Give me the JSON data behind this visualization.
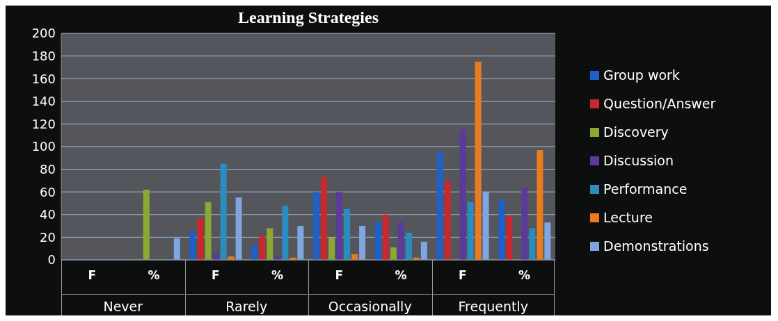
{
  "chart_data": {
    "type": "bar",
    "title": "Learning Strategies",
    "categories": [
      "F",
      "%",
      "F",
      "%",
      "F",
      "%",
      "F",
      "%"
    ],
    "annotations": [
      "Never",
      "Rarely",
      "Occasionally",
      "Frequently"
    ],
    "series": [
      {
        "name": "Group work",
        "color": "#1f5fc8",
        "values": [
          0,
          0,
          25,
          13,
          60,
          33,
          95,
          53
        ]
      },
      {
        "name": "Question/Answer",
        "color": "#c8282e",
        "values": [
          0,
          0,
          37,
          21,
          73,
          40,
          70,
          39
        ]
      },
      {
        "name": "Discovery",
        "color": "#8aa832",
        "values": [
          0,
          62,
          51,
          28,
          20,
          11,
          0,
          0
        ]
      },
      {
        "name": "Discussion",
        "color": "#5a3a9a",
        "values": [
          0,
          0,
          5,
          3,
          60,
          33,
          115,
          64
        ]
      },
      {
        "name": "Performance",
        "color": "#2a8cc0",
        "values": [
          0,
          0,
          85,
          48,
          45,
          24,
          51,
          28
        ]
      },
      {
        "name": "Lecture",
        "color": "#e87c1e",
        "values": [
          0,
          0,
          3,
          2,
          5,
          2,
          175,
          97
        ]
      },
      {
        "name": "Demonstrations",
        "color": "#7fa6e0",
        "values": [
          0,
          19,
          55,
          30,
          30,
          16,
          60,
          33
        ]
      }
    ],
    "ylim": [
      0,
      200
    ],
    "yticks": [
      0,
      20,
      40,
      60,
      80,
      100,
      120,
      140,
      160,
      180,
      200
    ],
    "grid": "y",
    "legend": "right"
  }
}
